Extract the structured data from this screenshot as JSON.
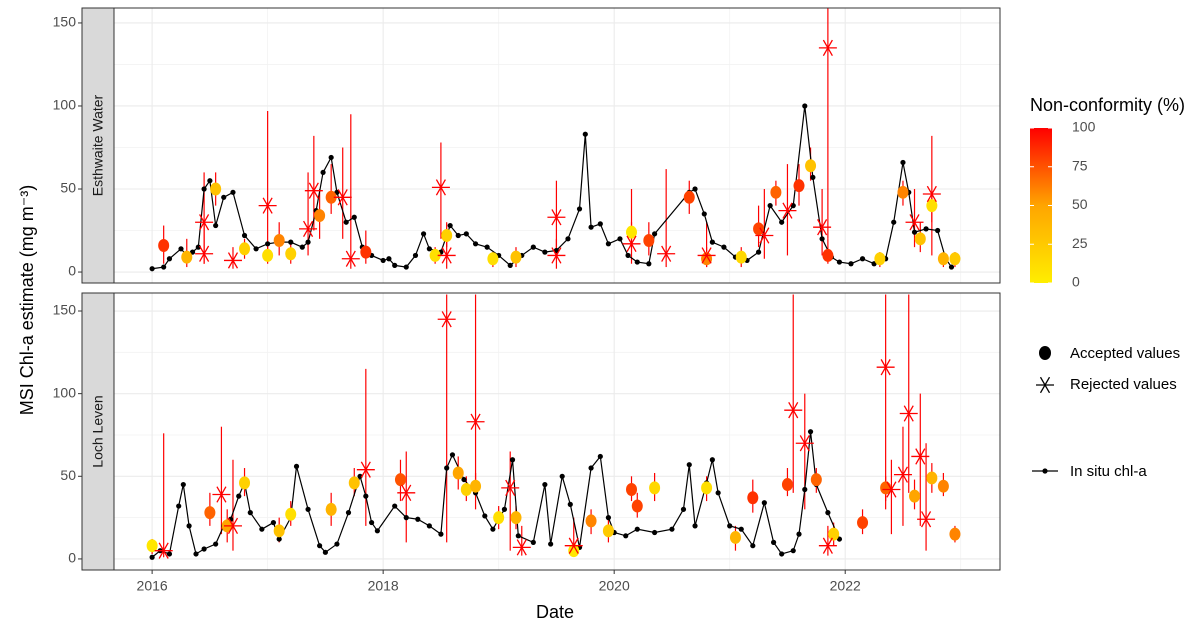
{
  "xlabel": "Date",
  "ylabel": "MSI Chl-a estimate (mg m⁻³)",
  "legend": {
    "accepted": "Accepted values",
    "rejected": "Rejected values",
    "in_situ": "In situ chl-a"
  },
  "colorbar": {
    "title": "Non-conformity (%)",
    "lim": [
      0,
      100
    ],
    "ticks": [
      0,
      25,
      50,
      75,
      100
    ],
    "colors": [
      "#ffee00",
      "#ffa500",
      "#ff0000"
    ]
  },
  "chart_data": [
    {
      "type": "line",
      "title": "Esthwaite Water",
      "xlim": [
        2015.67,
        2023.34
      ],
      "ylim": [
        -6.6,
        159
      ],
      "xticks": [
        2016,
        2018,
        2020,
        2022
      ],
      "xminor": [
        2017,
        2019,
        2021,
        2023
      ],
      "yticks": [
        0,
        50,
        100,
        150
      ],
      "yminor": [
        25,
        75,
        125
      ],
      "grid": true,
      "in_situ": {
        "color": "#000000",
        "x": [
          2016.0,
          2016.1,
          2016.15,
          2016.25,
          2016.3,
          2016.35,
          2016.4,
          2016.45,
          2016.5,
          2016.55,
          2016.62,
          2016.7,
          2016.8,
          2016.9,
          2017.0,
          2017.1,
          2017.2,
          2017.3,
          2017.35,
          2017.42,
          2017.48,
          2017.55,
          2017.6,
          2017.68,
          2017.75,
          2017.82,
          2017.9,
          2018.0,
          2018.05,
          2018.1,
          2018.2,
          2018.28,
          2018.35,
          2018.4,
          2018.5,
          2018.58,
          2018.65,
          2018.72,
          2018.8,
          2018.9,
          2019.0,
          2019.1,
          2019.2,
          2019.3,
          2019.4,
          2019.5,
          2019.6,
          2019.7,
          2019.75,
          2019.8,
          2019.88,
          2019.95,
          2020.05,
          2020.12,
          2020.2,
          2020.3,
          2020.35,
          2020.65,
          2020.7,
          2020.78,
          2020.85,
          2020.95,
          2021.05,
          2021.15,
          2021.25,
          2021.35,
          2021.45,
          2021.55,
          2021.65,
          2021.72,
          2021.8,
          2021.88,
          2021.95,
          2022.05,
          2022.15,
          2022.25,
          2022.35,
          2022.42,
          2022.5,
          2022.55,
          2022.6,
          2022.7,
          2022.8,
          2022.87,
          2022.92
        ],
        "values": [
          2,
          3,
          8,
          14,
          10,
          12,
          15,
          50,
          55,
          28,
          45,
          48,
          22,
          14,
          17,
          18,
          18,
          15,
          18,
          37,
          60,
          69,
          48,
          30,
          33,
          15,
          10,
          7,
          8,
          4,
          3,
          10,
          23,
          14,
          12,
          28,
          22,
          23,
          17,
          15,
          10,
          4,
          10,
          15,
          12,
          13,
          20,
          38,
          83,
          27,
          29,
          17,
          20,
          10,
          6,
          5,
          23,
          48,
          50,
          35,
          18,
          15,
          9,
          7,
          12,
          40,
          30,
          40,
          100,
          57,
          20,
          9,
          6,
          5,
          8,
          5,
          8,
          30,
          66,
          48,
          24,
          26,
          25,
          8,
          3
        ]
      },
      "accepted": {
        "x": [
          2016.1,
          2016.3,
          2016.55,
          2016.8,
          2017.0,
          2017.1,
          2017.2,
          2017.45,
          2017.55,
          2017.85,
          2018.45,
          2018.55,
          2018.95,
          2019.15,
          2020.15,
          2020.3,
          2020.65,
          2020.8,
          2021.1,
          2021.25,
          2021.4,
          2021.6,
          2021.7,
          2021.85,
          2022.3,
          2022.5,
          2022.65,
          2022.75,
          2022.85,
          2022.95
        ],
        "values": [
          16,
          9,
          50,
          14,
          10,
          19,
          11,
          34,
          45,
          12,
          10,
          22,
          8,
          9,
          24,
          19,
          45,
          8,
          9,
          26,
          48,
          52,
          64,
          10,
          8,
          48,
          20,
          40,
          8,
          8
        ],
        "nonconformity": [
          85,
          40,
          30,
          20,
          10,
          60,
          20,
          60,
          70,
          85,
          10,
          20,
          10,
          30,
          5,
          80,
          80,
          60,
          15,
          80,
          70,
          85,
          30,
          85,
          20,
          60,
          30,
          10,
          40,
          25
        ],
        "lower": [
          5,
          3,
          40,
          8,
          5,
          10,
          5,
          20,
          35,
          5,
          5,
          15,
          3,
          3,
          15,
          10,
          35,
          3,
          3,
          15,
          40,
          40,
          55,
          5,
          3,
          40,
          12,
          30,
          3,
          3
        ],
        "upper": [
          28,
          20,
          60,
          20,
          15,
          30,
          17,
          50,
          65,
          25,
          15,
          30,
          12,
          15,
          30,
          30,
          55,
          15,
          15,
          40,
          55,
          65,
          75,
          20,
          12,
          55,
          30,
          48,
          12,
          12
        ]
      },
      "rejected": {
        "color": "#ff0000",
        "x": [
          2016.45,
          2016.45,
          2016.7,
          2017.0,
          2017.35,
          2017.4,
          2017.65,
          2017.72,
          2018.5,
          2018.55,
          2019.5,
          2019.5,
          2020.15,
          2020.45,
          2020.8,
          2021.3,
          2021.5,
          2021.8,
          2021.85,
          2022.6,
          2022.75
        ],
        "values": [
          30,
          11,
          7,
          40,
          26,
          49,
          45,
          8,
          51,
          10,
          33,
          10,
          17,
          11,
          10,
          22,
          37,
          27,
          135,
          30,
          47
        ],
        "lower": [
          5,
          5,
          2,
          10,
          10,
          25,
          20,
          2,
          20,
          2,
          10,
          2,
          5,
          3,
          3,
          8,
          10,
          10,
          20,
          15,
          10
        ],
        "upper": [
          60,
          30,
          15,
          97,
          60,
          82,
          75,
          95,
          78,
          25,
          55,
          20,
          50,
          62,
          30,
          50,
          65,
          50,
          159,
          50,
          82
        ]
      }
    },
    {
      "type": "line",
      "title": "Loch Leven",
      "xlim": [
        2015.67,
        2023.34
      ],
      "ylim": [
        -6.7,
        160.9
      ],
      "xticks": [
        2016,
        2018,
        2020,
        2022
      ],
      "xminor": [
        2017,
        2019,
        2021,
        2023
      ],
      "yticks": [
        0,
        50,
        100,
        150
      ],
      "yminor": [
        25,
        75,
        125
      ],
      "grid": true,
      "in_situ": {
        "color": "#000000",
        "x": [
          2016.0,
          2016.07,
          2016.15,
          2016.23,
          2016.27,
          2016.32,
          2016.38,
          2016.45,
          2016.55,
          2016.62,
          2016.68,
          2016.75,
          2016.8,
          2016.85,
          2016.95,
          2017.05,
          2017.1,
          2017.2,
          2017.25,
          2017.35,
          2017.45,
          2017.5,
          2017.6,
          2017.7,
          2017.8,
          2017.85,
          2017.9,
          2017.95,
          2018.1,
          2018.2,
          2018.3,
          2018.4,
          2018.5,
          2018.55,
          2018.6,
          2018.7,
          2018.8,
          2018.88,
          2018.95,
          2019.05,
          2019.12,
          2019.17,
          2019.3,
          2019.4,
          2019.45,
          2019.55,
          2019.62,
          2019.7,
          2019.8,
          2019.88,
          2019.95,
          2020.0,
          2020.1,
          2020.2,
          2020.35,
          2020.5,
          2020.6,
          2020.65,
          2020.7,
          2020.8,
          2020.85,
          2020.9,
          2021.0,
          2021.1,
          2021.2,
          2021.3,
          2021.38,
          2021.45,
          2021.55,
          2021.6,
          2021.65,
          2021.7,
          2021.75,
          2021.85,
          2021.95
        ],
        "values": [
          1,
          5,
          3,
          32,
          45,
          20,
          3,
          6,
          9,
          20,
          24,
          38,
          46,
          28,
          18,
          22,
          12,
          25,
          56,
          30,
          8,
          4,
          9,
          28,
          50,
          38,
          22,
          17,
          32,
          25,
          24,
          20,
          15,
          55,
          63,
          48,
          40,
          26,
          18,
          30,
          60,
          14,
          10,
          45,
          9,
          50,
          33,
          7,
          55,
          62,
          25,
          16,
          14,
          18,
          16,
          18,
          30,
          57,
          20,
          46,
          60,
          40,
          20,
          18,
          8,
          34,
          10,
          3,
          5,
          15,
          42,
          77,
          45,
          28,
          12
        ]
      },
      "accepted": {
        "x": [
          2016.0,
          2016.5,
          2016.65,
          2016.8,
          2017.1,
          2017.2,
          2017.55,
          2017.75,
          2018.15,
          2018.65,
          2018.72,
          2018.8,
          2019.0,
          2019.15,
          2019.65,
          2019.8,
          2019.95,
          2020.15,
          2020.2,
          2020.35,
          2020.8,
          2021.05,
          2021.2,
          2021.5,
          2021.75,
          2021.9,
          2022.15,
          2022.35,
          2022.6,
          2022.75,
          2022.85,
          2022.95
        ],
        "values": [
          8,
          28,
          20,
          46,
          17,
          27,
          30,
          46,
          48,
          52,
          42,
          44,
          25,
          25,
          5,
          23,
          17,
          42,
          32,
          43,
          43,
          13,
          37,
          45,
          48,
          15,
          22,
          43,
          38,
          49,
          44,
          15
        ],
        "nonconformity": [
          5,
          70,
          50,
          20,
          30,
          10,
          40,
          30,
          75,
          50,
          20,
          40,
          10,
          40,
          5,
          60,
          25,
          80,
          80,
          15,
          10,
          40,
          85,
          80,
          70,
          20,
          80,
          70,
          50,
          40,
          60,
          60
        ],
        "lower": [
          3,
          20,
          10,
          38,
          10,
          20,
          20,
          38,
          35,
          42,
          35,
          38,
          18,
          18,
          2,
          15,
          10,
          35,
          25,
          35,
          35,
          5,
          28,
          38,
          40,
          8,
          15,
          35,
          30,
          40,
          38,
          10
        ],
        "upper": [
          12,
          40,
          30,
          55,
          25,
          35,
          40,
          55,
          60,
          62,
          50,
          52,
          32,
          32,
          8,
          30,
          25,
          50,
          40,
          52,
          50,
          20,
          48,
          55,
          55,
          22,
          30,
          50,
          48,
          58,
          52,
          20
        ]
      },
      "rejected": {
        "color": "#ff0000",
        "x": [
          2016.1,
          2016.6,
          2016.7,
          2017.85,
          2018.2,
          2018.55,
          2018.8,
          2019.1,
          2019.2,
          2019.65,
          2021.55,
          2021.65,
          2021.85,
          2022.35,
          2022.4,
          2022.5,
          2022.55,
          2022.65,
          2022.7
        ],
        "values": [
          5,
          39,
          20,
          54,
          40,
          145,
          83,
          43,
          7,
          8,
          90,
          70,
          8,
          116,
          42,
          51,
          88,
          62,
          24
        ],
        "lower": [
          1,
          15,
          5,
          20,
          10,
          10,
          30,
          5,
          2,
          2,
          40,
          30,
          2,
          30,
          15,
          20,
          40,
          20,
          5
        ],
        "upper": [
          76,
          80,
          60,
          115,
          65,
          160,
          160,
          65,
          20,
          25,
          160,
          100,
          20,
          160,
          60,
          80,
          160,
          100,
          70
        ]
      }
    }
  ]
}
